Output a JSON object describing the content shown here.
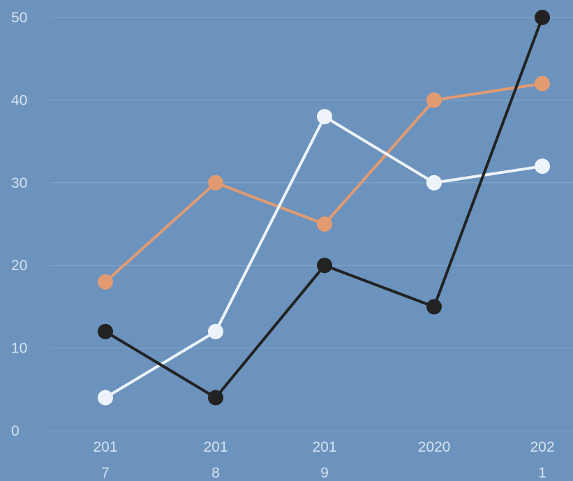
{
  "chart_data": {
    "type": "line",
    "title": "",
    "xlabel": "",
    "ylabel": "",
    "x": [
      "2017",
      "2018",
      "2019",
      "2020",
      "2021"
    ],
    "x_tick_lines": [
      [
        "201",
        "7"
      ],
      [
        "201",
        "8"
      ],
      [
        "201",
        "9"
      ],
      [
        "2020",
        ""
      ],
      [
        "202",
        "1"
      ]
    ],
    "yticks": [
      "0",
      "10",
      "20",
      "30",
      "40",
      "50"
    ],
    "ylim": [
      0,
      50
    ],
    "grid": true,
    "legend": "none",
    "series": [
      {
        "color": "#e29b71",
        "values": [
          18,
          30,
          25,
          40,
          42
        ]
      },
      {
        "color": "#eef3f9",
        "values": [
          4,
          12,
          38,
          30,
          32
        ]
      },
      {
        "color": "#222222",
        "values": [
          12,
          4,
          20,
          15,
          50
        ]
      }
    ]
  }
}
